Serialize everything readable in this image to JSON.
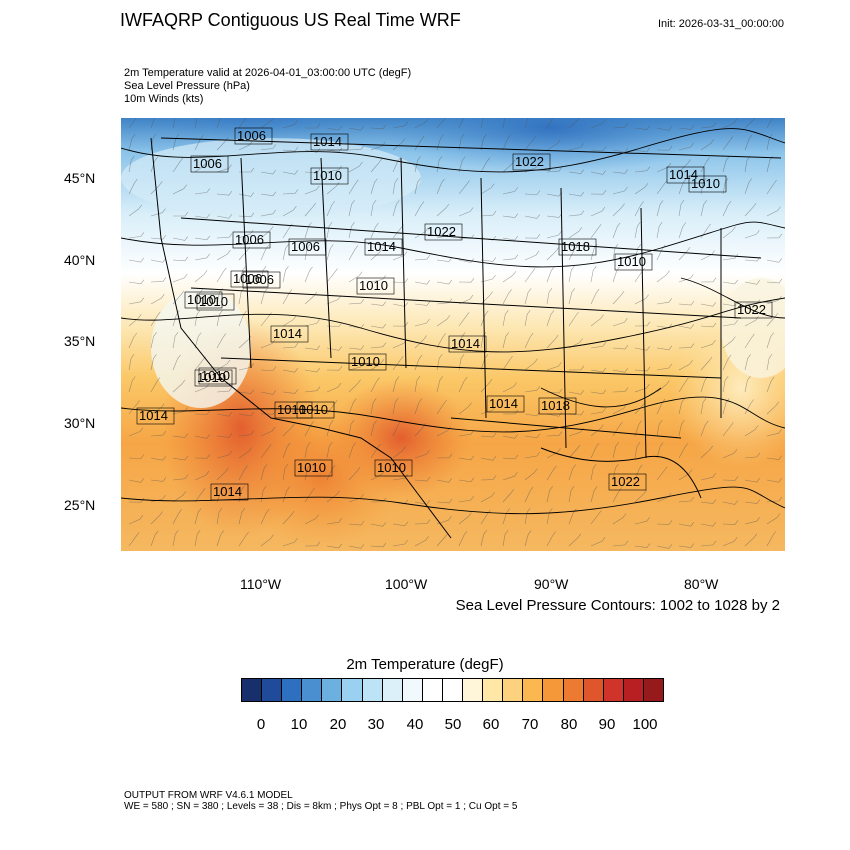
{
  "header": {
    "title": "IWFAQRP Contiguous US Real Time WRF",
    "init": "Init: 2026-03-31_00:00:00"
  },
  "fields": {
    "line1": "2m Temperature valid at 2026-04-01_03:00:00 UTC   (degF)",
    "line2": "Sea Level Pressure   (hPa)",
    "line3": "10m Winds   (kts)"
  },
  "map": {
    "lat_labels": [
      "45°N",
      "40°N",
      "35°N",
      "30°N",
      "25°N"
    ],
    "lon_labels": [
      "110°W",
      "100°W",
      "90°W",
      "80°W"
    ],
    "pressure_labels": [
      "1006",
      "1014",
      "1006",
      "1010",
      "1022",
      "1014",
      "1010",
      "1022",
      "1006",
      "1006",
      "1014",
      "1018",
      "1010",
      "1006",
      "1006",
      "1010",
      "1010",
      "1014",
      "1022",
      "1010",
      "1010",
      "1014",
      "1010",
      "1010",
      "1010",
      "1010",
      "1014",
      "1018",
      "1014",
      "1010",
      "1010",
      "1022",
      "1014"
    ],
    "contour_note": "Sea Level Pressure Contours: 1002 to 1028 by 2"
  },
  "colorbar": {
    "title": "2m Temperature  (degF)",
    "colors": [
      "#172f6b",
      "#1f4b9a",
      "#2f6fbf",
      "#4a90d0",
      "#6cb0e0",
      "#9ad0f0",
      "#bde3f7",
      "#dcf0fa",
      "#f2f9fc",
      "#ffffff",
      "#ffffff",
      "#fff5d8",
      "#ffe7a8",
      "#fdd27e",
      "#fbb850",
      "#f5983a",
      "#ec7a30",
      "#e0562c",
      "#cf3329",
      "#b71f23",
      "#961a1c"
    ],
    "tick_labels": [
      "0",
      "10",
      "20",
      "30",
      "40",
      "50",
      "60",
      "70",
      "80",
      "90",
      "100"
    ]
  },
  "footer": {
    "line1": "OUTPUT FROM WRF V4.6.1 MODEL",
    "line2": "WE = 580 ; SN = 380 ; Levels = 38 ; Dis = 8km ; Phys Opt = 8 ; PBL Opt = 1 ; Cu Opt = 5"
  }
}
